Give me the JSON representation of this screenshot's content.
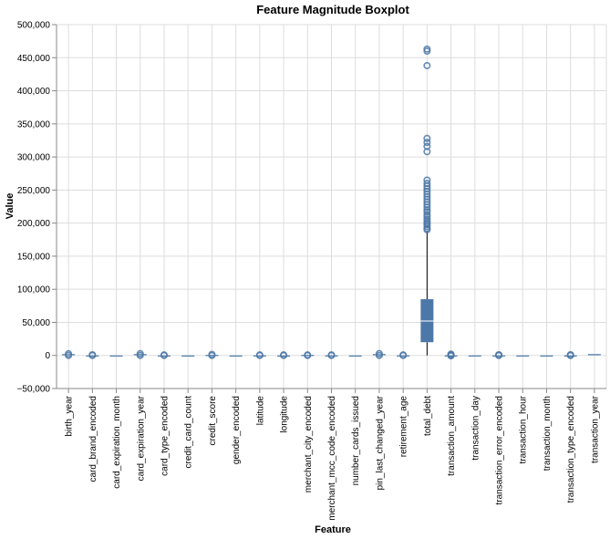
{
  "chart_data": {
    "type": "boxplot",
    "title": "Feature Magnitude Boxplot",
    "xlabel": "Feature",
    "ylabel": "Value",
    "ylim": [
      -50000,
      500000
    ],
    "yticks": [
      -50000,
      0,
      50000,
      100000,
      150000,
      200000,
      250000,
      300000,
      350000,
      400000,
      450000,
      500000
    ],
    "ytick_labels": [
      "−50,000",
      "0",
      "50,000",
      "100,000",
      "150,000",
      "200,000",
      "250,000",
      "300,000",
      "350,000",
      "400,000",
      "450,000",
      "500,000"
    ],
    "grid": true,
    "colors": {
      "box": "#4c78a8",
      "median": "#ffffff",
      "whisker": "#000000",
      "outlier": "#4c78a8"
    },
    "categories": [
      "birth_year",
      "card_brand_encoded",
      "card_expiration_month",
      "card_expiration_year",
      "card_type_encoded",
      "credit_card_count",
      "credit_score",
      "gender_encoded",
      "latitude",
      "longitude",
      "merchant_city_encoded",
      "merchant_mcc_code_encoded",
      "number_cards_issued",
      "pin_last_changed_year",
      "retirement_age",
      "total_debt",
      "transaction_amount",
      "transaction_day",
      "transaction_error_encoded",
      "transaction_hour",
      "transaction_month",
      "transaction_type_encoded",
      "transaction_year"
    ],
    "boxes": [
      {
        "feature": "birth_year",
        "min": 1920,
        "q1": 1960,
        "median": 1975,
        "q3": 1990,
        "max": 2005,
        "outliers": [
          0,
          2500
        ]
      },
      {
        "feature": "card_brand_encoded",
        "min": 0,
        "q1": 0,
        "median": 1,
        "q3": 2,
        "max": 3,
        "outliers": [
          0,
          1000
        ]
      },
      {
        "feature": "card_expiration_month",
        "min": 1,
        "q1": 3,
        "median": 6,
        "q3": 9,
        "max": 12,
        "outliers": []
      },
      {
        "feature": "card_expiration_year",
        "min": 2020,
        "q1": 2022,
        "median": 2024,
        "q3": 2026,
        "max": 2030,
        "outliers": [
          0,
          2700
        ]
      },
      {
        "feature": "card_type_encoded",
        "min": 0,
        "q1": 0,
        "median": 1,
        "q3": 1,
        "max": 2,
        "outliers": [
          0,
          800
        ]
      },
      {
        "feature": "credit_card_count",
        "min": 1,
        "q1": 2,
        "median": 3,
        "q3": 5,
        "max": 9,
        "outliers": []
      },
      {
        "feature": "credit_score",
        "min": 480,
        "q1": 680,
        "median": 710,
        "q3": 750,
        "max": 850,
        "outliers": [
          0,
          1500
        ]
      },
      {
        "feature": "gender_encoded",
        "min": 0,
        "q1": 0,
        "median": 1,
        "q3": 1,
        "max": 1,
        "outliers": []
      },
      {
        "feature": "latitude",
        "min": 20,
        "q1": 33,
        "median": 38,
        "q3": 41,
        "max": 61,
        "outliers": [
          0,
          800
        ]
      },
      {
        "feature": "longitude",
        "min": -158,
        "q1": -97,
        "median": -87,
        "q3": -80,
        "max": -68,
        "outliers": [
          0,
          800
        ]
      },
      {
        "feature": "merchant_city_encoded",
        "min": 0,
        "q1": 200,
        "median": 500,
        "q3": 800,
        "max": 1000,
        "outliers": [
          0,
          800
        ]
      },
      {
        "feature": "merchant_mcc_code_encoded",
        "min": 0,
        "q1": 20,
        "median": 50,
        "q3": 80,
        "max": 108,
        "outliers": [
          0,
          800
        ]
      },
      {
        "feature": "number_cards_issued",
        "min": 1,
        "q1": 1,
        "median": 1,
        "q3": 2,
        "max": 3,
        "outliers": []
      },
      {
        "feature": "pin_last_changed_year",
        "min": 2002,
        "q1": 2010,
        "median": 2013,
        "q3": 2016,
        "max": 2020,
        "outliers": [
          0,
          2800
        ]
      },
      {
        "feature": "retirement_age",
        "min": 50,
        "q1": 65,
        "median": 67,
        "q3": 68,
        "max": 79,
        "outliers": [
          0,
          800
        ]
      },
      {
        "feature": "total_debt",
        "min": 0,
        "q1": 20000,
        "median": 52000,
        "q3": 85000,
        "max": 188000,
        "outliers": [
          190000,
          192000,
          195000,
          198000,
          200000,
          203000,
          206000,
          210000,
          213000,
          217000,
          220000,
          224000,
          228000,
          232000,
          236000,
          240000,
          244000,
          248000,
          252000,
          256000,
          260000,
          265000,
          308000,
          316000,
          322000,
          328000,
          438000,
          460000,
          463000
        ]
      },
      {
        "feature": "transaction_amount",
        "min": -500,
        "q1": 10,
        "median": 30,
        "q3": 70,
        "max": 150,
        "outliers": [
          -500,
          0,
          1000,
          2000
        ]
      },
      {
        "feature": "transaction_day",
        "min": 1,
        "q1": 8,
        "median": 16,
        "q3": 23,
        "max": 31,
        "outliers": []
      },
      {
        "feature": "transaction_error_encoded",
        "min": 0,
        "q1": 0,
        "median": 0,
        "q3": 0,
        "max": 0,
        "outliers": [
          0,
          500,
          1000
        ]
      },
      {
        "feature": "transaction_hour",
        "min": 0,
        "q1": 8,
        "median": 13,
        "q3": 17,
        "max": 23,
        "outliers": []
      },
      {
        "feature": "transaction_month",
        "min": 1,
        "q1": 4,
        "median": 7,
        "q3": 10,
        "max": 12,
        "outliers": []
      },
      {
        "feature": "transaction_type_encoded",
        "min": 0,
        "q1": 0,
        "median": 1,
        "q3": 1,
        "max": 2,
        "outliers": [
          0,
          500,
          1000
        ]
      },
      {
        "feature": "transaction_year",
        "min": 2010,
        "q1": 2012,
        "median": 2015,
        "q3": 2017,
        "max": 2019,
        "outliers": []
      }
    ]
  }
}
